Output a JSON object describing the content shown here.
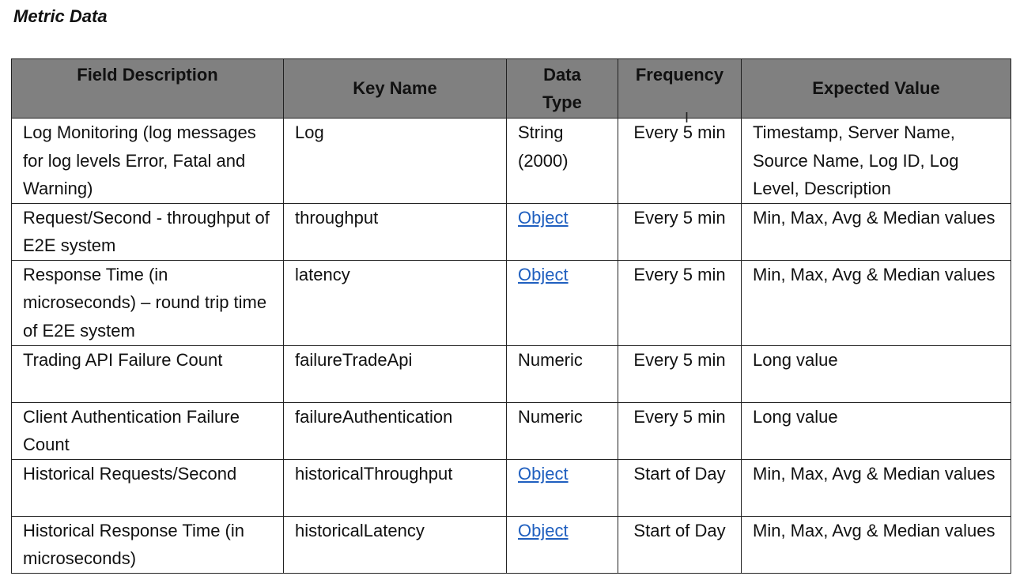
{
  "title": "Metric Data",
  "headers": [
    "Field Description",
    "Key Name",
    "Data Type",
    "Frequency",
    "Expected Value"
  ],
  "rows": [
    {
      "desc": "Log Monitoring (log messages for log levels Error, Fatal and Warning)",
      "key": "Log",
      "type": "String (2000)",
      "type_link": false,
      "freq": "Every 5 min",
      "expected": "Timestamp, Server Name, Source Name, Log ID, Log Level, Description"
    },
    {
      "desc": "Request/Second - throughput of E2E system",
      "key": "throughput",
      "type": "Object",
      "type_link": true,
      "freq": "Every 5 min",
      "expected": "Min, Max, Avg & Median values"
    },
    {
      "desc": "Response Time (in microseconds) – round trip time of E2E system",
      "key": "latency",
      "type": "Object",
      "type_link": true,
      "freq": "Every 5 min",
      "expected": "Min, Max, Avg & Median values"
    },
    {
      "desc": "Trading API Failure Count",
      "key": "failureTradeApi",
      "type": "Numeric",
      "type_link": false,
      "freq": "Every 5 min",
      "expected": "Long value"
    },
    {
      "desc": "Client Authentication Failure Count",
      "key": "failureAuthentication",
      "type": "Numeric",
      "type_link": false,
      "freq": "Every 5 min",
      "expected": "Long value"
    },
    {
      "desc": "Historical Requests/Second",
      "key": "historicalThroughput",
      "type": "Object",
      "type_link": true,
      "freq": "Start of Day",
      "expected": "Min, Max, Avg & Median values"
    },
    {
      "desc": "Historical Response Time (in microseconds)",
      "key": "historicalLatency",
      "type": "Object",
      "type_link": true,
      "freq": "Start of Day",
      "expected": "Min, Max, Avg & Median values"
    }
  ],
  "colors": {
    "header_bg": "#808080",
    "link": "#1f5fbf"
  }
}
